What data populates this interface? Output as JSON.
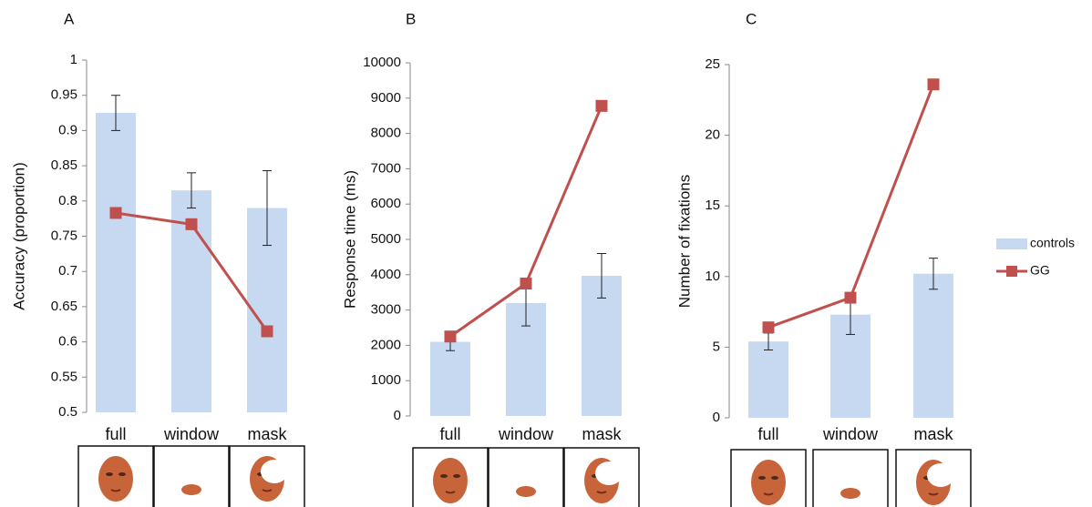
{
  "chart_data": [
    {
      "type": "bar_line",
      "panel_label": "A",
      "y_label": "Accuracy (proportion)",
      "categories": [
        "full",
        "window",
        "mask"
      ],
      "series": [
        {
          "kind": "bar",
          "color": "#c6d9f1",
          "values": [
            0.925,
            0.815,
            0.79
          ],
          "errors": [
            0.025,
            0.025,
            0.053
          ]
        },
        {
          "kind": "line",
          "color": "#c0504d",
          "values": [
            0.783,
            0.767,
            0.615
          ]
        }
      ],
      "ylim": [
        0.5,
        1
      ],
      "yticks": [
        0.5,
        0.55,
        0.6,
        0.65,
        0.7,
        0.75,
        0.8,
        0.85,
        0.9,
        0.95,
        1
      ]
    },
    {
      "type": "bar_line",
      "panel_label": "B",
      "y_label": "Response time (ms)",
      "categories": [
        "full",
        "window",
        "mask"
      ],
      "series": [
        {
          "kind": "bar",
          "color": "#c6d9f1",
          "values": [
            2100,
            3200,
            3970
          ],
          "errors": [
            250,
            650,
            630
          ]
        },
        {
          "kind": "line",
          "color": "#c0504d",
          "values": [
            2250,
            3750,
            8780
          ]
        }
      ],
      "ylim": [
        0,
        10000
      ],
      "yticks": [
        0,
        1000,
        2000,
        3000,
        4000,
        5000,
        6000,
        7000,
        8000,
        9000,
        10000
      ]
    },
    {
      "type": "bar_line",
      "panel_label": "C",
      "y_label": "Number of fixations",
      "categories": [
        "full",
        "window",
        "mask"
      ],
      "series": [
        {
          "kind": "bar",
          "name": "controls",
          "color": "#c6d9f1",
          "values": [
            5.4,
            7.3,
            10.2
          ],
          "errors": [
            0.6,
            1.4,
            1.1
          ]
        },
        {
          "kind": "line",
          "name": "GG",
          "color": "#c0504d",
          "values": [
            6.4,
            8.5,
            23.6
          ]
        }
      ],
      "ylim": [
        0,
        25
      ],
      "yticks": [
        0,
        5,
        10,
        15,
        20,
        25
      ]
    }
  ]
}
